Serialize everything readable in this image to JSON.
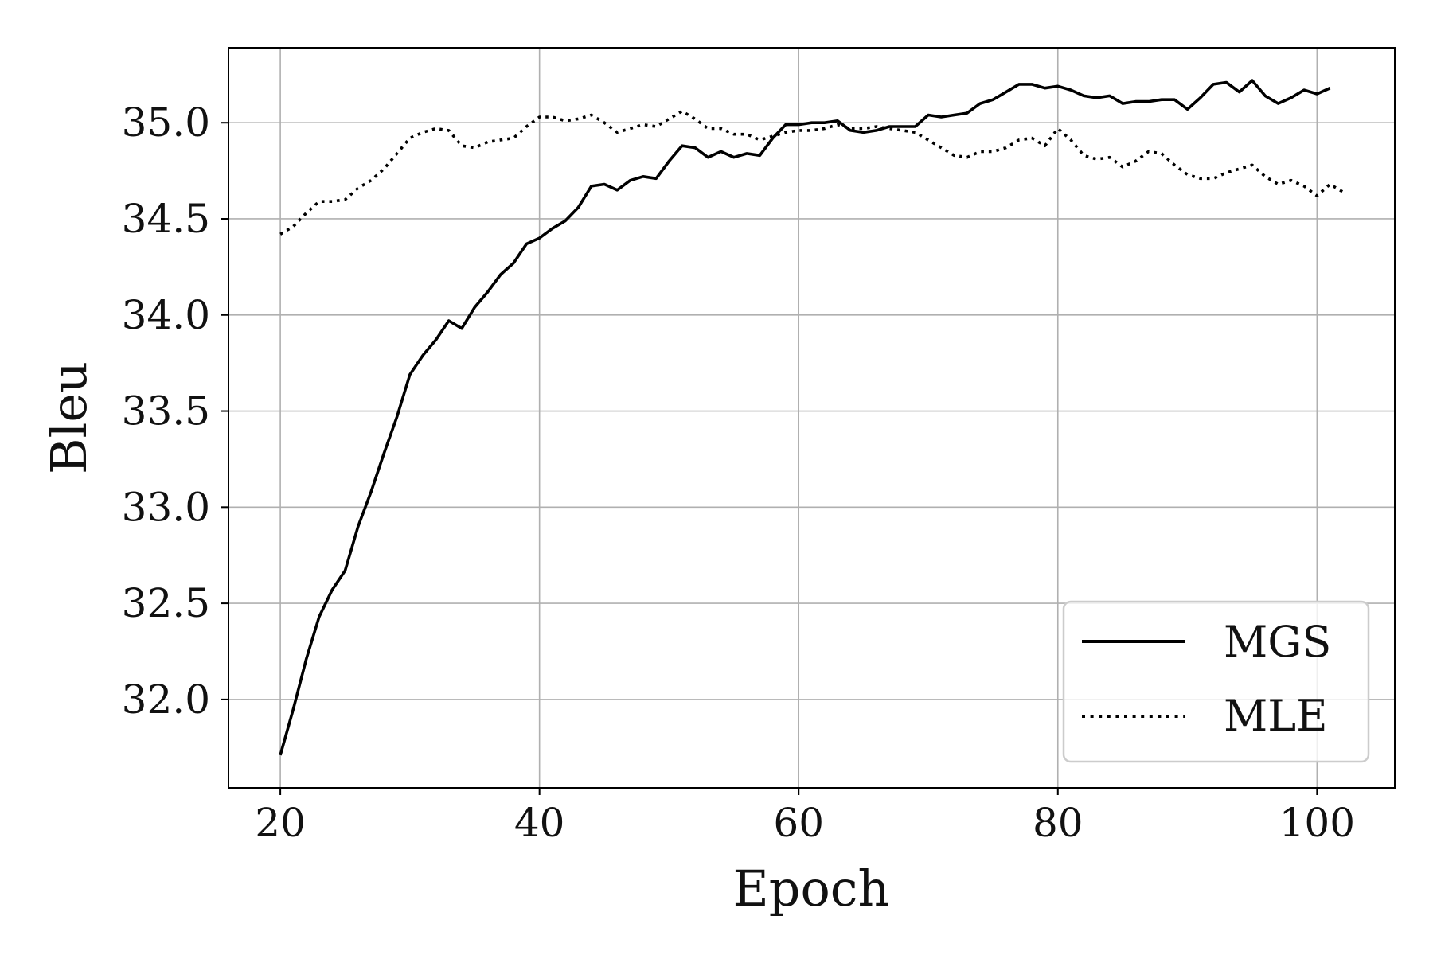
{
  "chart_data": {
    "type": "line",
    "title": "",
    "xlabel": "Epoch",
    "ylabel": "Bleu",
    "xlim": [
      16,
      106
    ],
    "ylim": [
      31.54,
      35.39
    ],
    "xticks": [
      20,
      40,
      60,
      80,
      100
    ],
    "xtick_labels": [
      "20",
      "40",
      "60",
      "80",
      "100"
    ],
    "yticks": [
      32.0,
      32.5,
      33.0,
      33.5,
      34.0,
      34.5,
      35.0
    ],
    "ytick_labels": [
      "32.0",
      "32.5",
      "33.0",
      "33.5",
      "34.0",
      "34.5",
      "35.0"
    ],
    "grid": true,
    "legend_position": "lower-right",
    "series": [
      {
        "name": "MGS",
        "style": "solid",
        "color": "#000000",
        "x": [
          20,
          21,
          22,
          23,
          24,
          25,
          26,
          27,
          28,
          29,
          30,
          31,
          32,
          33,
          34,
          35,
          36,
          37,
          38,
          39,
          40,
          41,
          42,
          43,
          44,
          45,
          46,
          47,
          48,
          49,
          50,
          51,
          52,
          53,
          54,
          55,
          56,
          57,
          58,
          59,
          60,
          61,
          62,
          63,
          64,
          65,
          66,
          67,
          68,
          69,
          70,
          71,
          72,
          73,
          74,
          75,
          76,
          77,
          78,
          79,
          80,
          81,
          82,
          83,
          84,
          85,
          86,
          87,
          88,
          89,
          90,
          91,
          92,
          93,
          94,
          95,
          96,
          97,
          98,
          99,
          100,
          101
        ],
        "y": [
          31.71,
          31.95,
          32.21,
          32.43,
          32.57,
          32.67,
          32.9,
          33.08,
          33.28,
          33.47,
          33.69,
          33.79,
          33.87,
          33.97,
          33.93,
          34.04,
          34.12,
          34.21,
          34.27,
          34.37,
          34.4,
          34.45,
          34.49,
          34.56,
          34.67,
          34.68,
          34.65,
          34.7,
          34.72,
          34.71,
          34.8,
          34.88,
          34.87,
          34.82,
          34.85,
          34.82,
          34.84,
          34.83,
          34.92,
          34.99,
          34.99,
          35.0,
          35.0,
          35.01,
          34.96,
          34.95,
          34.96,
          34.98,
          34.98,
          34.98,
          35.04,
          35.03,
          35.04,
          35.05,
          35.1,
          35.12,
          35.16,
          35.2,
          35.2,
          35.18,
          35.19,
          35.17,
          35.14,
          35.13,
          35.14,
          35.1,
          35.11,
          35.11,
          35.12,
          35.12,
          35.07,
          35.13,
          35.2,
          35.21,
          35.16,
          35.22,
          35.14,
          35.1,
          35.13,
          35.17,
          35.15,
          35.18
        ]
      },
      {
        "name": "MLE",
        "style": "dotted",
        "color": "#000000",
        "x": [
          20,
          21,
          22,
          23,
          24,
          25,
          26,
          27,
          28,
          29,
          30,
          31,
          32,
          33,
          34,
          35,
          36,
          37,
          38,
          39,
          40,
          41,
          42,
          43,
          44,
          45,
          46,
          47,
          48,
          49,
          50,
          51,
          52,
          53,
          54,
          55,
          56,
          57,
          58,
          59,
          60,
          61,
          62,
          63,
          64,
          65,
          66,
          67,
          68,
          69,
          70,
          71,
          72,
          73,
          74,
          75,
          76,
          77,
          78,
          79,
          80,
          81,
          82,
          83,
          84,
          85,
          86,
          87,
          88,
          89,
          90,
          91,
          92,
          93,
          94,
          95,
          96,
          97,
          98,
          99,
          100,
          101,
          102
        ],
        "y": [
          34.42,
          34.46,
          34.53,
          34.59,
          34.59,
          34.6,
          34.66,
          34.7,
          34.76,
          34.84,
          34.92,
          34.95,
          34.97,
          34.96,
          34.88,
          34.87,
          34.9,
          34.91,
          34.92,
          34.98,
          35.03,
          35.03,
          35.01,
          35.02,
          35.04,
          35.0,
          34.95,
          34.97,
          34.99,
          34.98,
          35.02,
          35.06,
          35.02,
          34.97,
          34.97,
          34.94,
          34.94,
          34.91,
          34.93,
          34.95,
          34.96,
          34.96,
          34.97,
          34.99,
          34.97,
          34.97,
          34.98,
          34.97,
          34.96,
          34.95,
          34.91,
          34.87,
          34.83,
          34.82,
          34.85,
          34.85,
          34.87,
          34.91,
          34.92,
          34.88,
          34.97,
          34.91,
          34.83,
          34.81,
          34.82,
          34.77,
          34.8,
          34.85,
          34.84,
          34.78,
          34.73,
          34.71,
          34.71,
          34.74,
          34.76,
          34.78,
          34.72,
          34.68,
          34.7,
          34.67,
          34.62,
          34.68,
          34.64
        ]
      }
    ]
  }
}
